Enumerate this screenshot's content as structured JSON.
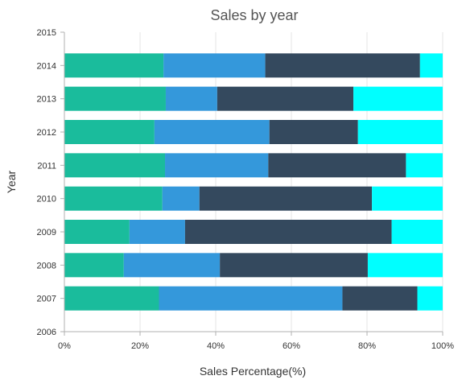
{
  "chart_data": {
    "type": "bar",
    "orientation": "horizontal",
    "stacking": "100%",
    "title": "Sales by year",
    "xlabel": "Sales Percentage(%)",
    "ylabel": "Year",
    "categories": [
      "2007",
      "2008",
      "2009",
      "2010",
      "2011",
      "2012",
      "2013",
      "2014"
    ],
    "y_axis_ticks": [
      "2006",
      "2007",
      "2008",
      "2009",
      "2010",
      "2011",
      "2012",
      "2013",
      "2014",
      "2015"
    ],
    "x_axis_ticks": [
      "0%",
      "20%",
      "40%",
      "60%",
      "80%",
      "100%"
    ],
    "xlim": [
      0,
      100
    ],
    "grid": true,
    "legend": "none",
    "series": [
      {
        "color": "#1abc9c",
        "values": [
          25,
          15.7,
          17.2,
          25.9,
          26.6,
          23.8,
          26.8,
          26.2
        ]
      },
      {
        "color": "#3498db",
        "values": [
          48.5,
          25.4,
          14.7,
          9.8,
          27.3,
          30.4,
          13.6,
          26.9
        ]
      },
      {
        "color": "#34495e",
        "values": [
          19.8,
          39.1,
          54.6,
          45.6,
          36.4,
          23.4,
          36.0,
          40.9
        ]
      },
      {
        "color": "#00ffff",
        "values": [
          6.7,
          19.8,
          13.5,
          18.7,
          9.7,
          22.4,
          23.6,
          6.0
        ]
      }
    ]
  }
}
